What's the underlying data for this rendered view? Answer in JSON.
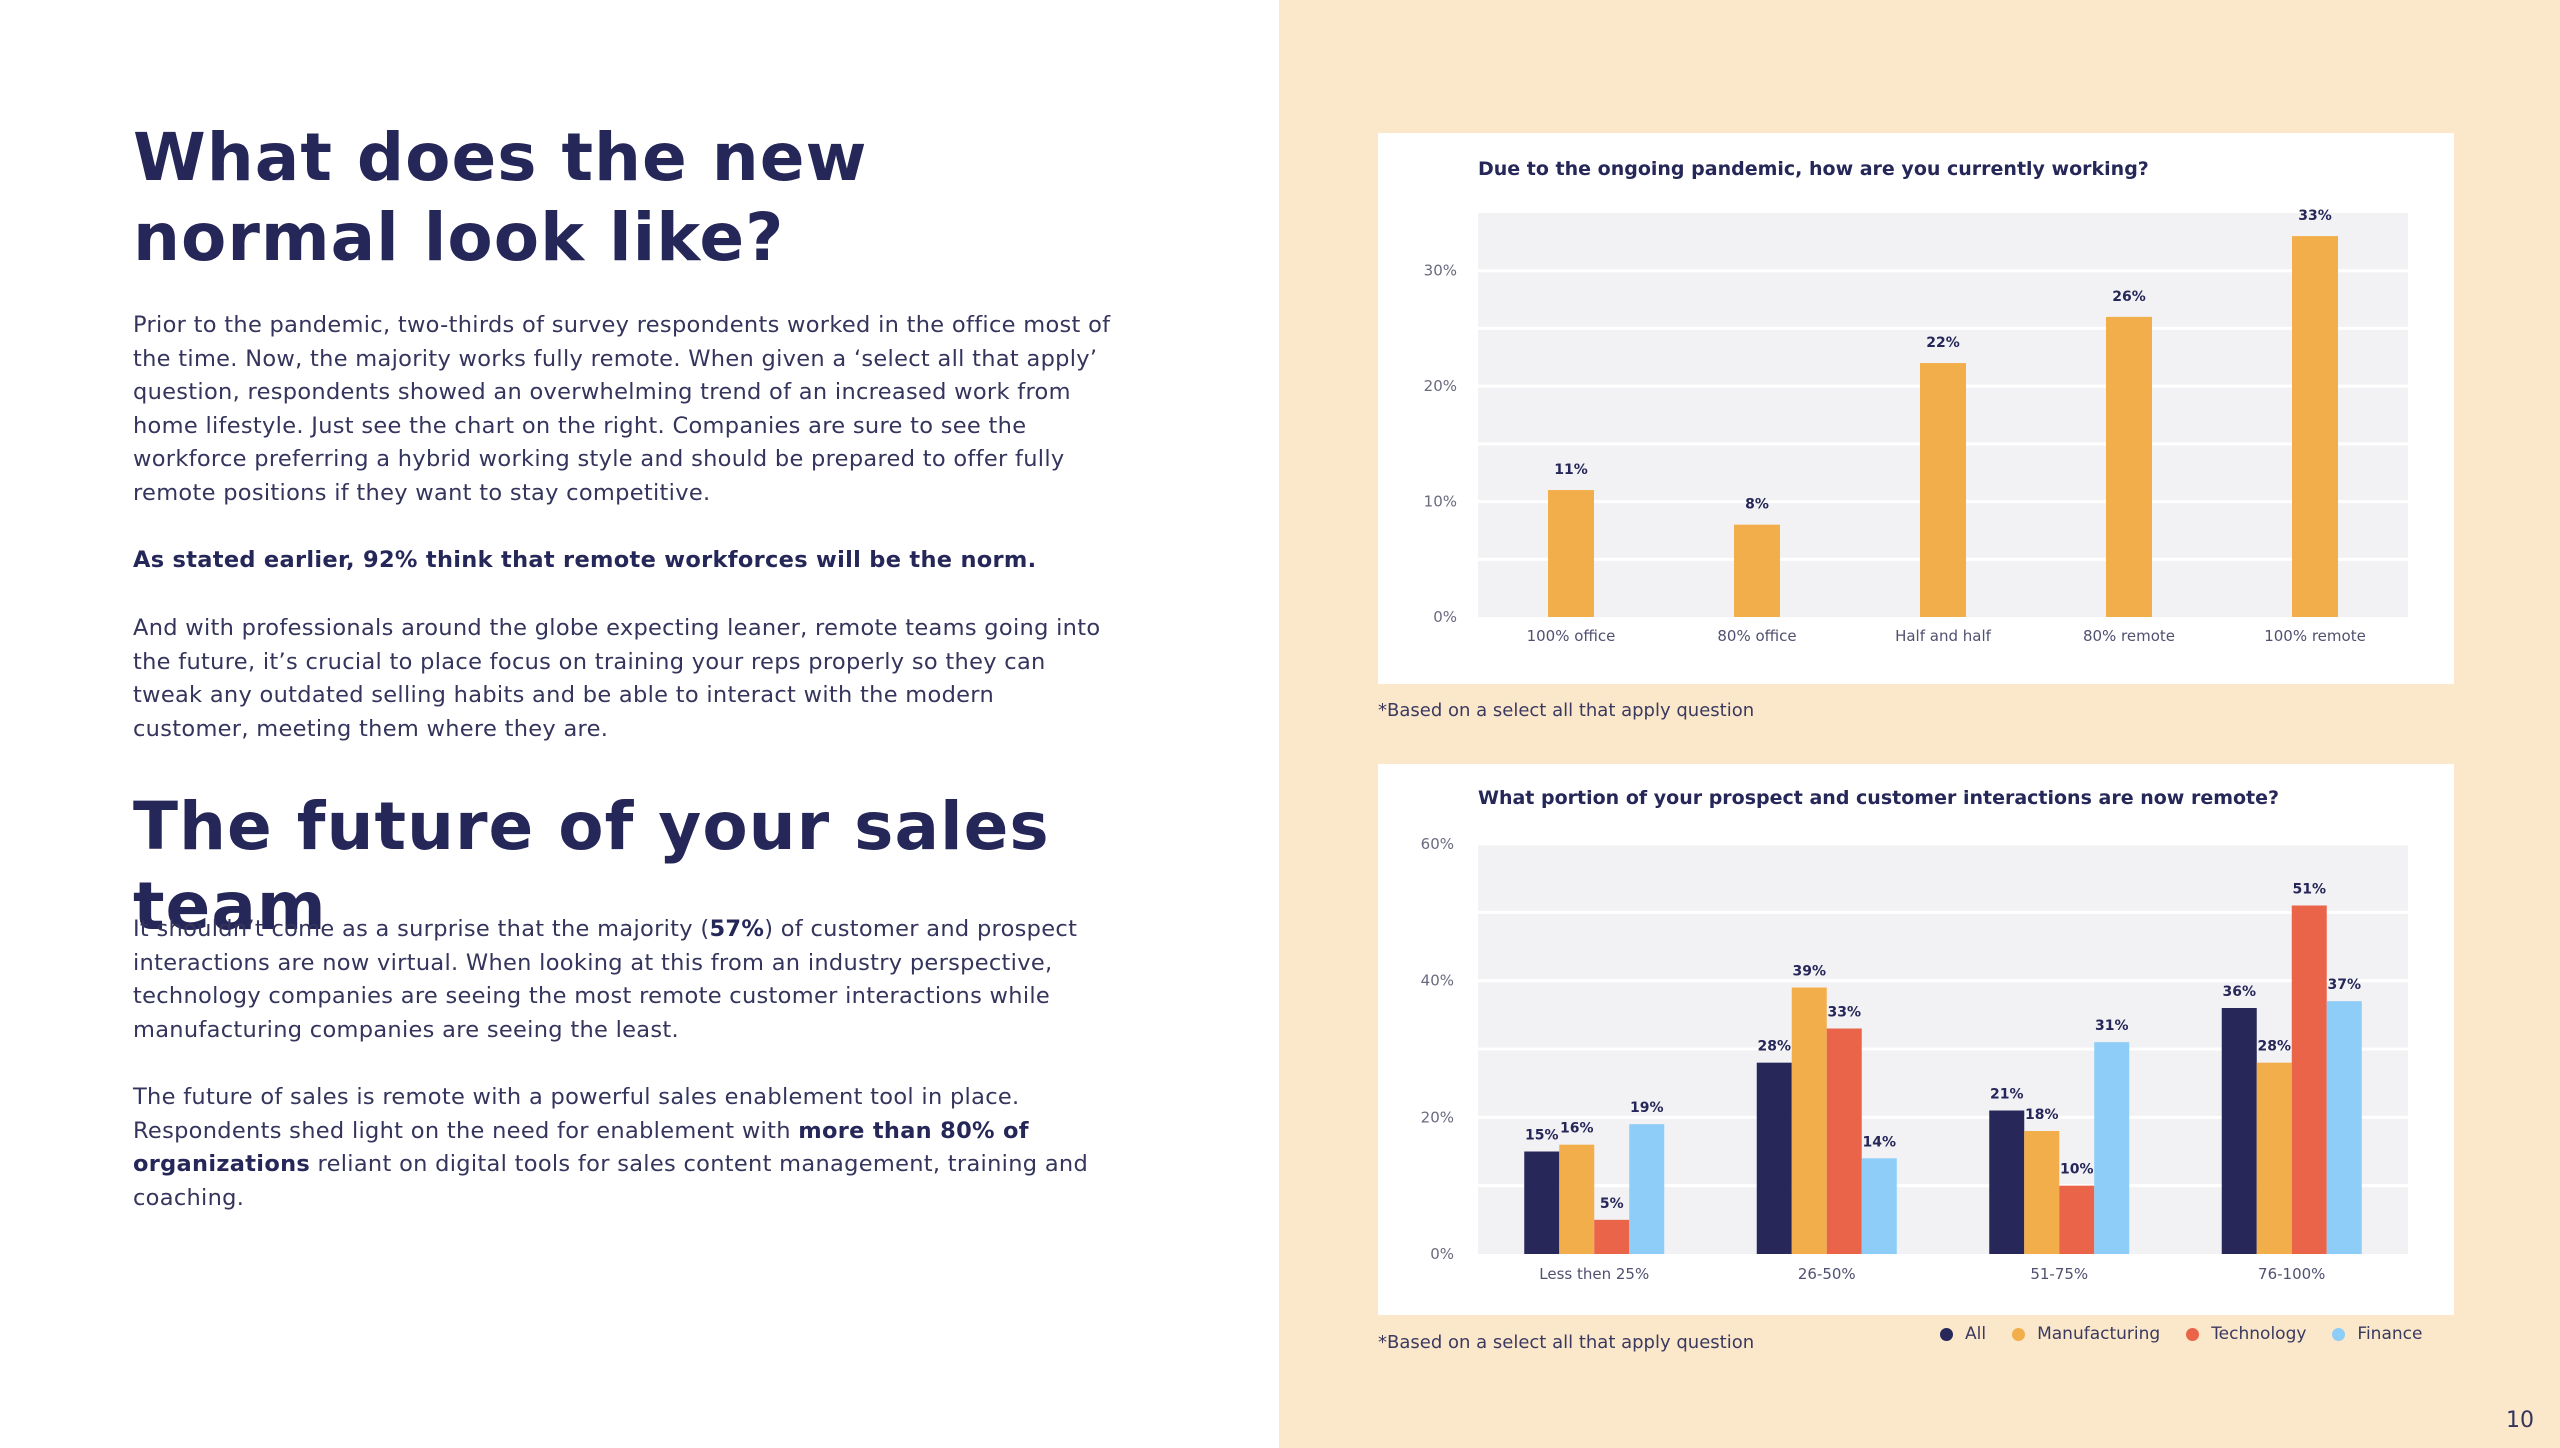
{
  "left": {
    "heading1": "What does the new normal look like?",
    "para1": "Prior to the pandemic, two-thirds of survey respondents worked in the office most of the time. Now, the majority works fully remote. When given a ‘select all that apply’ question, respondents showed an overwhelming trend of an increased work from home lifestyle. Just see the chart on the right. Companies are sure to see the workforce preferring a hybrid working style and should be prepared to offer fully remote positions if they want to stay competitive.",
    "para2": "As stated earlier, 92% think that remote workforces will be the norm.",
    "para3": "And with professionals around the globe expecting leaner, remote teams going into the future, it’s crucial to place focus on training your reps properly so they can tweak any outdated selling habits and be able to interact with the modern customer, meeting them where they are.",
    "heading2": "The future of your sales team",
    "para4_a": "It shouldn’t come as a surprise that the majority (",
    "para4_b": "57%",
    "para4_c": ") of customer and prospect interactions are now virtual. When looking at this from an industry perspective, technology companies are seeing the most remote customer interactions while manufacturing companies are seeing the least.",
    "para5_a": "The future of sales is remote with a powerful sales enablement tool in place. Respondents shed light on the need for enablement with ",
    "para5_b": "more than 80% of organizations",
    "para5_c": " reliant on digital tools for sales content management, training and coaching."
  },
  "footnote1": "*Based on a select all that apply question",
  "footnote2": "*Based on a select all that apply question",
  "page_number": "10",
  "colors": {
    "panel_bg": "#fbe7ca",
    "all": "#27275a",
    "manufacturing": "#f2ae4b",
    "technology": "#ea644a",
    "finance": "#8dcdf7",
    "plot_bg": "#f2f2f4"
  },
  "chart_data": [
    {
      "type": "bar",
      "title": "Due to the ongoing pandemic, how are you currently working?",
      "categories": [
        "100% office",
        "80% office",
        "Half and half",
        "80% remote",
        "100% remote"
      ],
      "values": [
        11,
        8,
        22,
        26,
        33
      ],
      "value_labels": [
        "11%",
        "8%",
        "22%",
        "26%",
        "33%"
      ],
      "yticks": [
        0,
        10,
        20,
        30
      ],
      "ytick_labels": [
        "0%",
        "10%",
        "20%",
        "30%"
      ],
      "ylim": [
        0,
        35
      ],
      "xlabel": "",
      "ylabel": ""
    },
    {
      "type": "bar",
      "title": "What portion of your prospect and customer interactions are now remote?",
      "categories": [
        "Less then 25%",
        "26-50%",
        "51-75%",
        "76-100%"
      ],
      "series": [
        {
          "name": "All",
          "values": [
            15,
            28,
            21,
            36
          ],
          "labels": [
            "15%",
            "28%",
            "21%",
            "36%"
          ]
        },
        {
          "name": "Manufacturing",
          "values": [
            16,
            39,
            18,
            28
          ],
          "labels": [
            "16%",
            "39%",
            "18%",
            "28%"
          ]
        },
        {
          "name": "Technology",
          "values": [
            5,
            33,
            10,
            51
          ],
          "labels": [
            "5%",
            "33%",
            "10%",
            "51%"
          ]
        },
        {
          "name": "Finance",
          "values": [
            19,
            14,
            31,
            37
          ],
          "labels": [
            "19%",
            "14%",
            "31%",
            "37%"
          ]
        }
      ],
      "yticks": [
        0,
        20,
        40,
        60
      ],
      "ytick_labels": [
        "0%",
        "20%",
        "40%",
        "60%"
      ],
      "ylim": [
        0,
        60
      ],
      "legend": "bottom-right",
      "xlabel": "",
      "ylabel": ""
    }
  ]
}
